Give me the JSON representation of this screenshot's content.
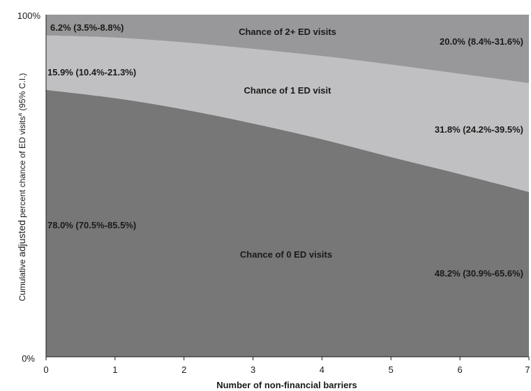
{
  "chart_data": {
    "type": "area",
    "x": [
      0,
      1,
      2,
      3,
      4,
      5,
      6,
      7
    ],
    "xlabel": "Number of non-financial barriers",
    "ylabel": {
      "part1": "Cumulative ",
      "part2": "adjusted",
      "part3": " percent chance of ED visits",
      "sup": "a",
      "part4": " (95% C.I.)"
    },
    "xlim": [
      0,
      7
    ],
    "ylim": [
      0,
      100
    ],
    "y_ticks": [
      "0%",
      "100%"
    ],
    "x_ticks": [
      "0",
      "1",
      "2",
      "3",
      "4",
      "5",
      "6",
      "7"
    ],
    "grid": false,
    "colors": {
      "zero_visits": "#777778",
      "one_visit": "#c0c0c2",
      "two_plus_visits": "#98989a"
    },
    "series": [
      {
        "name": "Chance of 0 ED visits",
        "values": [
          78.0,
          75.6,
          72.3,
          68.2,
          63.6,
          58.4,
          53.4,
          48.2
        ]
      },
      {
        "name": "Chance of 1 ED visit",
        "values": [
          15.9,
          17.7,
          19.6,
          21.8,
          24.3,
          27.0,
          29.3,
          31.8
        ]
      },
      {
        "name": "Chance of 2+ ED visits",
        "values": [
          6.2,
          6.7,
          8.1,
          10.0,
          12.1,
          14.6,
          17.3,
          20.0
        ]
      }
    ],
    "annotations": {
      "zero_start": "78.0% (70.5%-85.5%)",
      "zero_end": "48.2% (30.9%-65.6%)",
      "one_start": "15.9% (10.4%-21.3%)",
      "one_end": "31.8% (24.2%-39.5%)",
      "two_start": "6.2% (3.5%-8.8%)",
      "two_end": "20.0% (8.4%-31.6%)"
    }
  }
}
